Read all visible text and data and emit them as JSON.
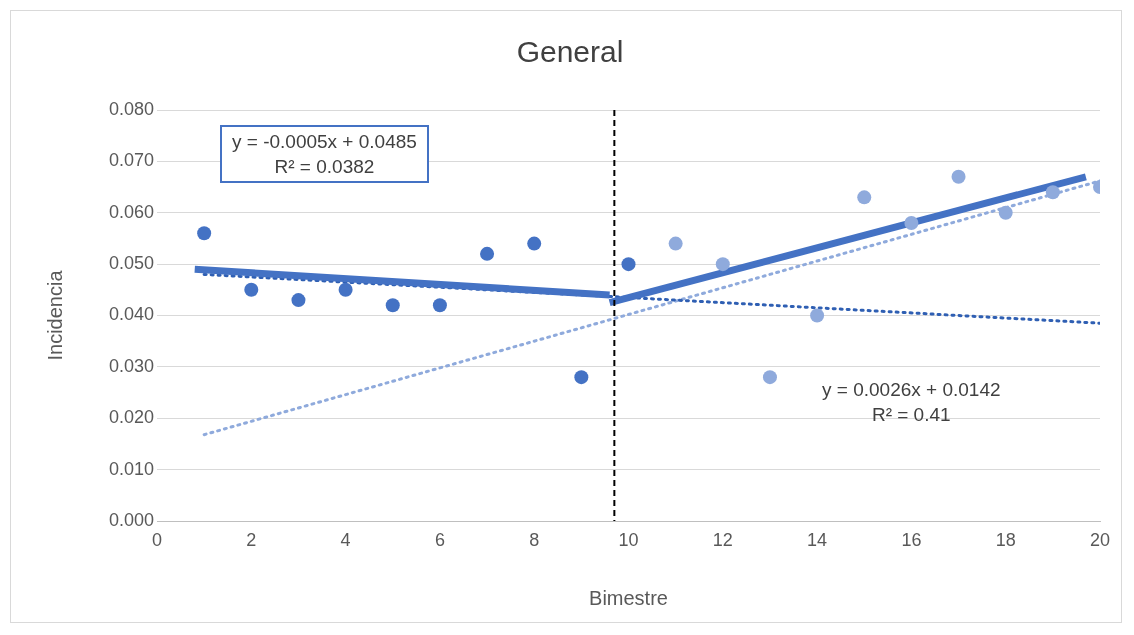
{
  "chart_data": {
    "type": "scatter",
    "title": "General",
    "xlabel": "Bimestre",
    "ylabel": "Incidencia",
    "xlim": [
      0,
      20
    ],
    "xticks": [
      0,
      2,
      4,
      6,
      8,
      10,
      12,
      14,
      16,
      18,
      20
    ],
    "ylim": [
      0,
      0.08
    ],
    "yticks": [
      {
        "value": 0,
        "label": "0.000"
      },
      {
        "value": 0.01,
        "label": "0.010"
      },
      {
        "value": 0.02,
        "label": "0.020"
      },
      {
        "value": 0.03,
        "label": "0.030"
      },
      {
        "value": 0.04,
        "label": "0.040"
      },
      {
        "value": 0.05,
        "label": "0.050"
      },
      {
        "value": 0.06,
        "label": "0.060"
      },
      {
        "value": 0.07,
        "label": "0.070"
      },
      {
        "value": 0.08,
        "label": "0.080"
      }
    ],
    "grid": "y",
    "legend": false,
    "series": [
      {
        "marker": "circle",
        "color": "#4472c4",
        "x": [
          1,
          2,
          3,
          4,
          5,
          6,
          7,
          8,
          9,
          10
        ],
        "values": [
          0.056,
          0.045,
          0.043,
          0.045,
          0.042,
          0.042,
          0.052,
          0.054,
          0.028,
          0.05
        ]
      },
      {
        "marker": "circle",
        "color": "#8faadc",
        "x": [
          11,
          12,
          13,
          14,
          15,
          16,
          17,
          18,
          19,
          20
        ],
        "values": [
          0.054,
          0.05,
          0.028,
          0.04,
          0.063,
          0.058,
          0.067,
          0.06,
          0.064,
          0.065
        ]
      },
      {
        "type": "line",
        "marker": "none",
        "color": "#4472c4",
        "line_style": "solid",
        "x": [
          0.8,
          9.6
        ],
        "values": [
          0.049,
          0.044
        ]
      },
      {
        "type": "line",
        "marker": "none",
        "color": "#4472c4",
        "line_style": "solid",
        "x": [
          9.6,
          19.7
        ],
        "values": [
          0.0425,
          0.067
        ]
      },
      {
        "type": "line",
        "marker": "none",
        "color": "#2f5fb3",
        "line_style": "dotted",
        "x": [
          1,
          20
        ],
        "values": [
          0.048,
          0.0385
        ]
      },
      {
        "type": "line",
        "marker": "none",
        "color": "#8faadc",
        "line_style": "dotted",
        "x": [
          1,
          20
        ],
        "values": [
          0.0168,
          0.0662
        ]
      }
    ],
    "ref_lines": [
      {
        "axis": "x",
        "value": 9.7,
        "color": "#000000",
        "line_style": "dashed"
      }
    ],
    "annotations": [
      "y = -0.0005x + 0.0485\nR² = 0.0382",
      "y = 0.0026x + 0.0142\nR² = 0.41"
    ]
  }
}
